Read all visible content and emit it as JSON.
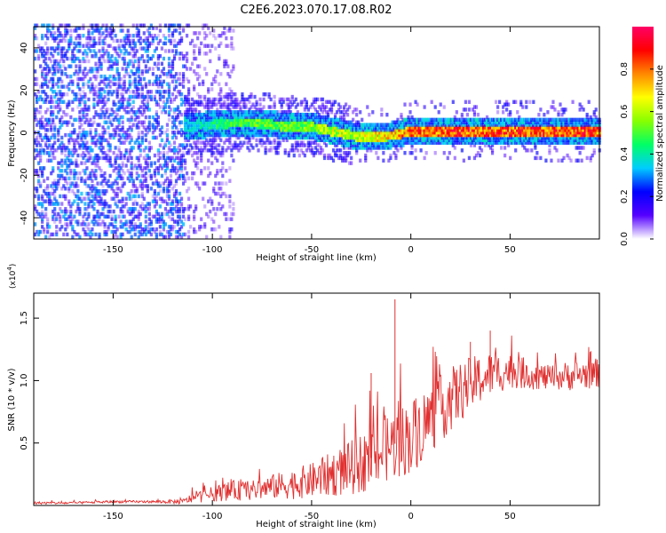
{
  "title": "C2E6.2023.070.17.08.R02",
  "chart_data": [
    {
      "type": "heatmap",
      "xlabel": "Height of straight line (km)",
      "ylabel": "Frequency (Hz)",
      "xlim": [
        -190,
        95
      ],
      "ylim": [
        -50,
        50
      ],
      "xticks": [
        -150,
        -100,
        -50,
        0,
        50
      ],
      "yticks": [
        -40,
        -20,
        0,
        20,
        40
      ],
      "colorbar": {
        "label": "Normalized spectral amplitude",
        "range": [
          0.0,
          1.0
        ],
        "ticks": [
          0.0,
          0.2,
          0.4,
          0.6,
          0.8
        ],
        "tick_labels": [
          "0.0",
          "0.2",
          "0.4",
          "0.6",
          "0.8"
        ],
        "colormap": [
          "#ffffff",
          "#5500ff",
          "#0000ff",
          "#00ccff",
          "#00ff66",
          "#88ff00",
          "#ffff00",
          "#ff8800",
          "#ff0000",
          "#ff0066"
        ]
      },
      "signal_band": {
        "x": [
          -120,
          -100,
          -90,
          -80,
          -70,
          -60,
          -50,
          -40,
          -30,
          -20,
          -10,
          0,
          10,
          20,
          30,
          40,
          50,
          60,
          70,
          80,
          95
        ],
        "center_hz": [
          2,
          3,
          4,
          4,
          3,
          2,
          2,
          0,
          -2,
          -3,
          -2,
          0,
          0,
          0,
          0,
          0,
          0,
          0,
          0,
          0,
          0
        ],
        "peak_amplitude": [
          0.3,
          0.45,
          0.5,
          0.55,
          0.55,
          0.55,
          0.6,
          0.65,
          0.65,
          0.7,
          0.75,
          0.85,
          0.9,
          0.9,
          0.9,
          0.9,
          0.9,
          0.9,
          0.9,
          0.9,
          0.9
        ]
      },
      "noise_region_x": [
        -190,
        -115
      ]
    },
    {
      "type": "line",
      "xlabel": "Height of straight line (km)",
      "ylabel": "SNR (10 * v/v)",
      "y_multiplier": "(x10",
      "y_multiplier_exp": "4",
      "y_multiplier_close": ")",
      "xlim": [
        -190,
        95
      ],
      "ylim": [
        0,
        1.7
      ],
      "xticks": [
        -150,
        -100,
        -50,
        0,
        50
      ],
      "yticks": [
        0.5,
        1.0,
        1.5
      ],
      "ytick_labels": [
        "0.5",
        "1.0",
        "1.5"
      ],
      "color": "#e03030",
      "x": [
        -190,
        -170,
        -150,
        -130,
        -115,
        -110,
        -100,
        -90,
        -80,
        -70,
        -60,
        -50,
        -40,
        -30,
        -20,
        -10,
        0,
        10,
        20,
        30,
        40,
        50,
        60,
        70,
        80,
        95
      ],
      "values": [
        0.02,
        0.02,
        0.03,
        0.03,
        0.03,
        0.06,
        0.09,
        0.12,
        0.12,
        0.15,
        0.17,
        0.2,
        0.25,
        0.3,
        0.38,
        0.48,
        0.55,
        0.7,
        0.85,
        0.97,
        1.05,
        1.08,
        1.05,
        1.02,
        1.04,
        1.06
      ],
      "noise": [
        0.01,
        0.01,
        0.01,
        0.01,
        0.02,
        0.04,
        0.06,
        0.08,
        0.08,
        0.1,
        0.12,
        0.14,
        0.18,
        0.22,
        0.26,
        0.28,
        0.3,
        0.28,
        0.26,
        0.22,
        0.18,
        0.14,
        0.12,
        0.1,
        0.12,
        0.12
      ],
      "spikes": [
        {
          "x": -8,
          "y": 1.65
        },
        {
          "x": -20,
          "y": 1.06
        },
        {
          "x": 40,
          "y": 1.4
        },
        {
          "x": 30,
          "y": 1.31
        }
      ]
    }
  ]
}
